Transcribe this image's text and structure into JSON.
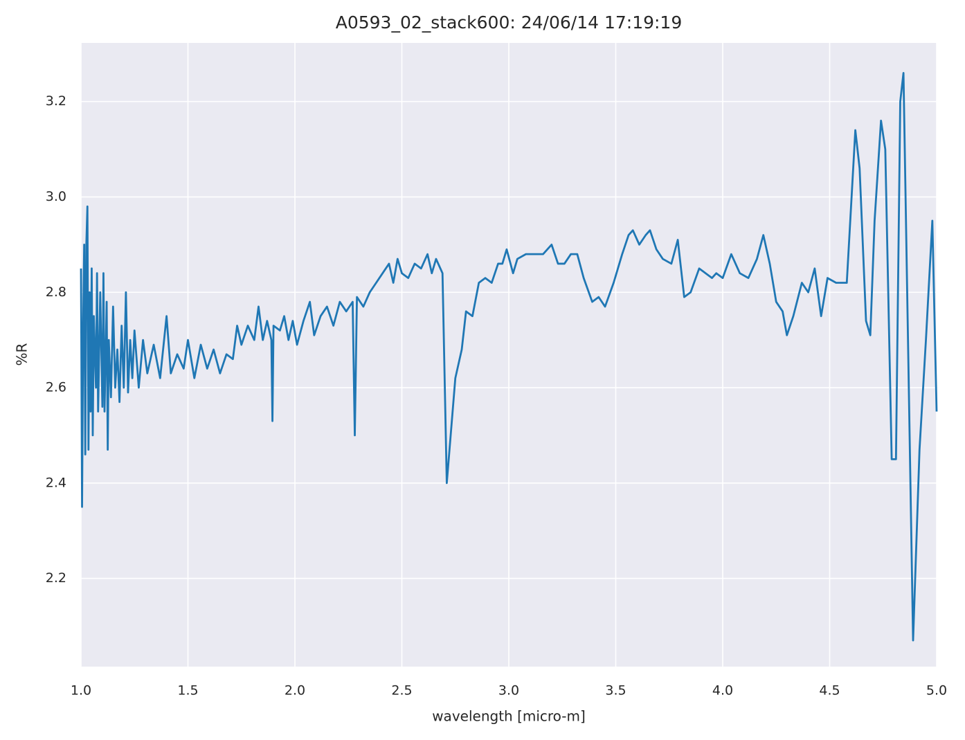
{
  "chart_data": {
    "type": "line",
    "title": "A0593_02_stack600:  24/06/14 17:19:19",
    "x_label": "wavelength [micro-m]",
    "y_label": "%R",
    "color": "#1f77b4",
    "grid": true,
    "xlim": [
      1.0,
      5.0
    ],
    "ylim": [
      2.015,
      3.323
    ],
    "xticks": [
      {
        "value": 1.0,
        "label": "1.0"
      },
      1.5,
      {
        "value": 2.0,
        "label": "2.0"
      },
      2.5,
      {
        "value": 3.0,
        "label": "3.0"
      },
      3.5,
      {
        "value": 4.0,
        "label": "4.0"
      },
      4.5,
      {
        "value": 5.0,
        "label": "5.0"
      }
    ],
    "yticks": [
      2.2,
      2.4,
      2.6,
      2.8,
      {
        "value": 3.0,
        "label": "3.0"
      },
      3.2
    ],
    "x": [
      1.0,
      1.005,
      1.01,
      1.015,
      1.02,
      1.025,
      1.03,
      1.035,
      1.04,
      1.045,
      1.05,
      1.055,
      1.06,
      1.07,
      1.075,
      1.08,
      1.09,
      1.1,
      1.105,
      1.11,
      1.12,
      1.125,
      1.13,
      1.14,
      1.15,
      1.16,
      1.17,
      1.18,
      1.19,
      1.2,
      1.21,
      1.22,
      1.23,
      1.24,
      1.25,
      1.27,
      1.29,
      1.31,
      1.34,
      1.37,
      1.4,
      1.42,
      1.45,
      1.48,
      1.5,
      1.53,
      1.56,
      1.59,
      1.62,
      1.65,
      1.68,
      1.71,
      1.73,
      1.75,
      1.78,
      1.81,
      1.83,
      1.85,
      1.87,
      1.89,
      1.895,
      1.9,
      1.93,
      1.95,
      1.97,
      1.99,
      2.01,
      2.04,
      2.07,
      2.09,
      2.12,
      2.15,
      2.18,
      2.21,
      2.24,
      2.27,
      2.28,
      2.29,
      2.32,
      2.35,
      2.38,
      2.41,
      2.44,
      2.46,
      2.48,
      2.5,
      2.53,
      2.56,
      2.59,
      2.62,
      2.64,
      2.66,
      2.69,
      2.71,
      2.75,
      2.78,
      2.8,
      2.83,
      2.86,
      2.89,
      2.92,
      2.95,
      2.97,
      2.99,
      3.02,
      3.04,
      3.08,
      3.12,
      3.16,
      3.2,
      3.23,
      3.26,
      3.29,
      3.32,
      3.35,
      3.39,
      3.42,
      3.45,
      3.49,
      3.53,
      3.56,
      3.58,
      3.61,
      3.64,
      3.66,
      3.69,
      3.72,
      3.76,
      3.79,
      3.82,
      3.85,
      3.89,
      3.92,
      3.95,
      3.97,
      4.0,
      4.04,
      4.08,
      4.12,
      4.16,
      4.19,
      4.22,
      4.25,
      4.28,
      4.3,
      4.33,
      4.37,
      4.4,
      4.43,
      4.46,
      4.49,
      4.53,
      4.56,
      4.58,
      4.6,
      4.62,
      4.64,
      4.67,
      4.69,
      4.71,
      4.74,
      4.76,
      4.79,
      4.81,
      4.83,
      4.845,
      4.87,
      4.89,
      4.92,
      4.95,
      4.98,
      5.0
    ],
    "values": [
      2.85,
      2.35,
      2.73,
      2.9,
      2.46,
      2.9,
      2.98,
      2.47,
      2.8,
      2.55,
      2.85,
      2.5,
      2.75,
      2.6,
      2.84,
      2.55,
      2.8,
      2.56,
      2.84,
      2.55,
      2.78,
      2.47,
      2.7,
      2.58,
      2.77,
      2.6,
      2.68,
      2.57,
      2.73,
      2.6,
      2.8,
      2.59,
      2.7,
      2.62,
      2.72,
      2.6,
      2.7,
      2.63,
      2.69,
      2.62,
      2.75,
      2.63,
      2.67,
      2.64,
      2.7,
      2.62,
      2.69,
      2.64,
      2.68,
      2.63,
      2.67,
      2.66,
      2.73,
      2.69,
      2.73,
      2.7,
      2.77,
      2.7,
      2.74,
      2.7,
      2.53,
      2.73,
      2.72,
      2.75,
      2.7,
      2.74,
      2.69,
      2.74,
      2.78,
      2.71,
      2.75,
      2.77,
      2.73,
      2.78,
      2.76,
      2.78,
      2.5,
      2.79,
      2.77,
      2.8,
      2.82,
      2.84,
      2.86,
      2.82,
      2.87,
      2.84,
      2.83,
      2.86,
      2.85,
      2.88,
      2.84,
      2.87,
      2.84,
      2.4,
      2.62,
      2.68,
      2.76,
      2.75,
      2.82,
      2.83,
      2.82,
      2.86,
      2.86,
      2.89,
      2.84,
      2.87,
      2.88,
      2.88,
      2.88,
      2.9,
      2.86,
      2.86,
      2.88,
      2.88,
      2.83,
      2.78,
      2.79,
      2.77,
      2.82,
      2.88,
      2.92,
      2.93,
      2.9,
      2.92,
      2.93,
      2.89,
      2.87,
      2.86,
      2.91,
      2.79,
      2.8,
      2.85,
      2.84,
      2.83,
      2.84,
      2.83,
      2.88,
      2.84,
      2.83,
      2.87,
      2.92,
      2.86,
      2.78,
      2.76,
      2.71,
      2.75,
      2.82,
      2.8,
      2.85,
      2.75,
      2.83,
      2.82,
      2.82,
      2.82,
      2.98,
      3.14,
      3.06,
      2.74,
      2.71,
      2.95,
      3.16,
      3.1,
      2.45,
      2.45,
      3.2,
      3.26,
      2.6,
      2.07,
      2.47,
      2.7,
      2.95,
      2.55
    ]
  }
}
